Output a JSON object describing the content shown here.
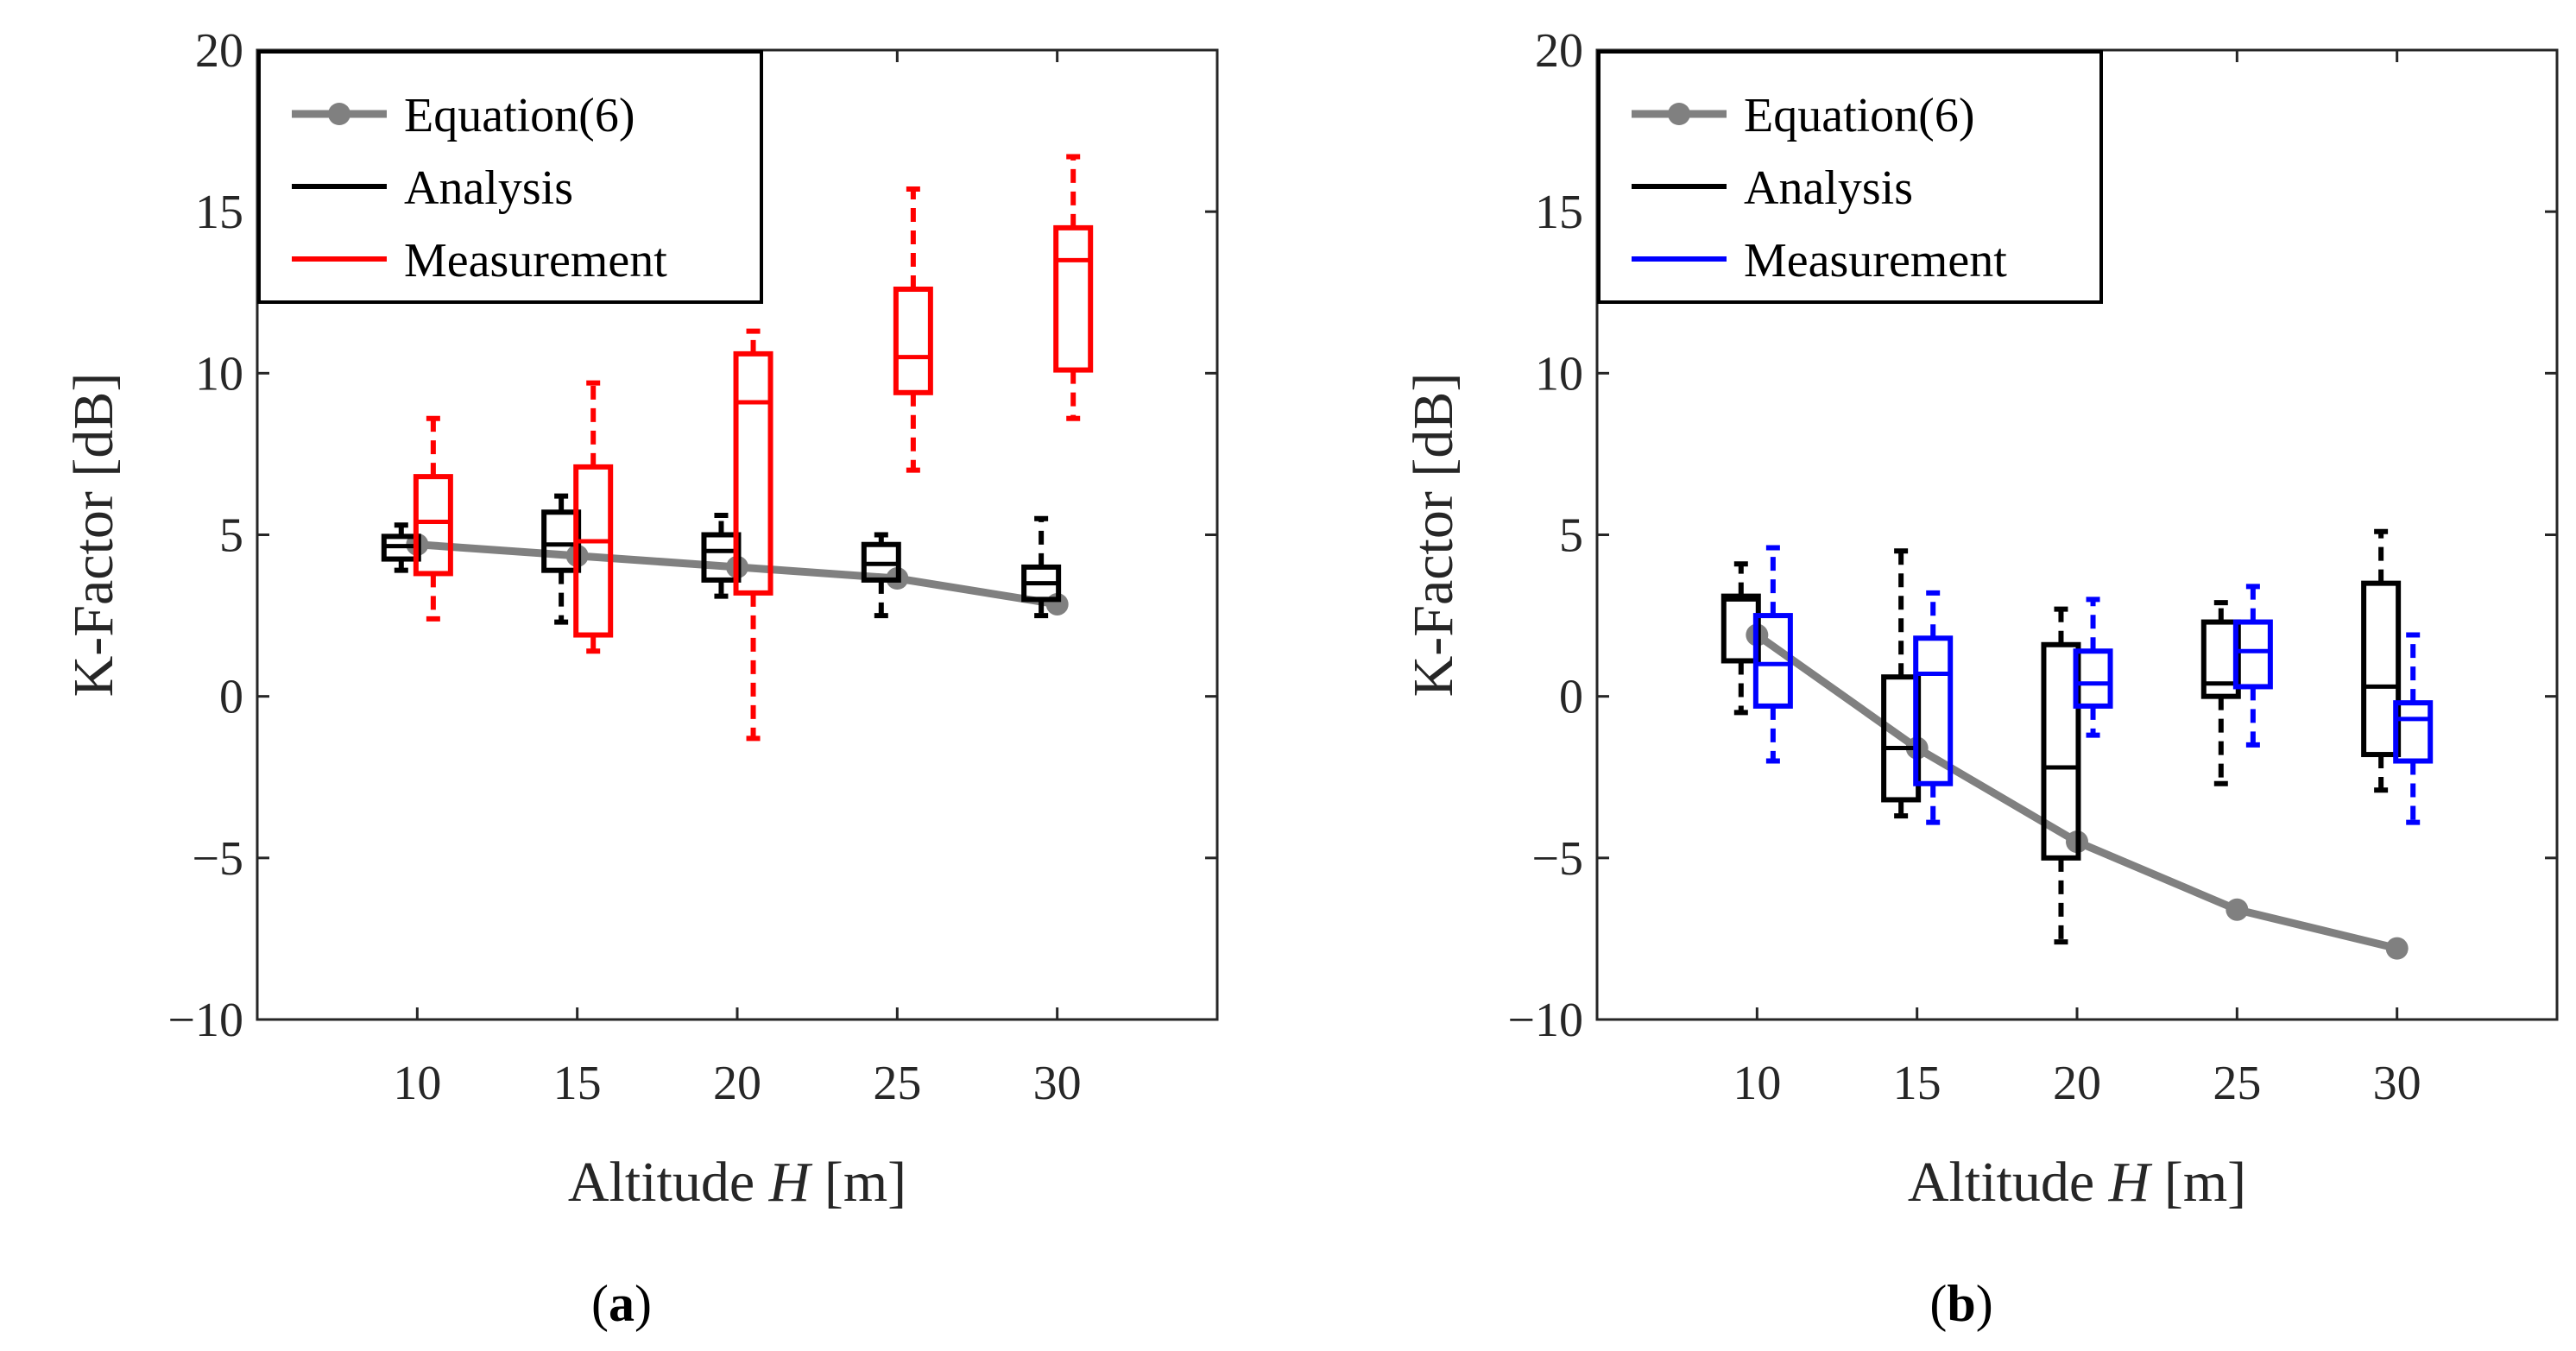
{
  "panels": [
    {
      "caption_open": "(",
      "caption_letter": "a",
      "caption_close": ")",
      "xlabel_prefix": "Altitude ",
      "xlabel_var": "H",
      "xlabel_unit": " [m]",
      "ylabel": "K-Factor [dB]",
      "legend": {
        "equation_label": "Equation(6)",
        "analysis_label": "Analysis",
        "measurement_label": "Measurement"
      }
    },
    {
      "caption_open": "(",
      "caption_letter": "b",
      "caption_close": ")",
      "xlabel_prefix": "Altitude ",
      "xlabel_var": "H",
      "xlabel_unit": " [m]",
      "ylabel": "K-Factor [dB]",
      "legend": {
        "equation_label": "Equation(6)",
        "analysis_label": "Analysis",
        "measurement_label": "Measurement"
      }
    }
  ],
  "chart_data": [
    {
      "type": "box",
      "x": [
        10,
        15,
        20,
        25,
        30
      ],
      "xlim": [
        5,
        35
      ],
      "ylim": [
        -10,
        20
      ],
      "xticks": [
        "10",
        "15",
        "20",
        "25",
        "30"
      ],
      "yticks": [
        "20",
        "15",
        "10",
        "5",
        "0",
        "−5",
        "−10"
      ],
      "ytick_values": [
        20,
        15,
        10,
        5,
        0,
        -5,
        -10
      ],
      "grid": false,
      "legend_position": "top-left",
      "colors": {
        "equation": "#808080",
        "analysis": "#000000",
        "measurement": "#ff0000"
      },
      "equation": {
        "name": "Equation(6)",
        "y": [
          4.7,
          4.35,
          4.0,
          3.65,
          2.85
        ]
      },
      "analysis": {
        "name": "Analysis",
        "boxes": [
          {
            "x": 10,
            "whisker_low": 3.9,
            "q1": 4.25,
            "median": 4.65,
            "q3": 4.95,
            "whisker_high": 5.3
          },
          {
            "x": 15,
            "whisker_low": 2.3,
            "q1": 3.9,
            "median": 4.7,
            "q3": 5.7,
            "whisker_high": 6.2
          },
          {
            "x": 20,
            "whisker_low": 3.1,
            "q1": 3.6,
            "median": 4.5,
            "q3": 5.0,
            "whisker_high": 5.6
          },
          {
            "x": 25,
            "whisker_low": 2.5,
            "q1": 3.6,
            "median": 4.1,
            "q3": 4.7,
            "whisker_high": 5.0
          },
          {
            "x": 30,
            "whisker_low": 2.5,
            "q1": 3.0,
            "median": 3.5,
            "q3": 4.0,
            "whisker_high": 5.5
          }
        ]
      },
      "measurement": {
        "name": "Measurement",
        "boxes": [
          {
            "x": 10,
            "whisker_low": 2.4,
            "q1": 3.8,
            "median": 5.4,
            "q3": 6.8,
            "whisker_high": 8.6
          },
          {
            "x": 15,
            "whisker_low": 1.4,
            "q1": 1.9,
            "median": 4.8,
            "q3": 7.1,
            "whisker_high": 9.7
          },
          {
            "x": 20,
            "whisker_low": -1.3,
            "q1": 3.2,
            "median": 9.1,
            "q3": 10.6,
            "whisker_high": 11.3
          },
          {
            "x": 25,
            "whisker_low": 7.0,
            "q1": 9.4,
            "median": 10.5,
            "q3": 12.6,
            "whisker_high": 15.7
          },
          {
            "x": 30,
            "whisker_low": 8.6,
            "q1": 10.1,
            "median": 13.5,
            "q3": 14.5,
            "whisker_high": 16.7
          }
        ]
      }
    },
    {
      "type": "box",
      "x": [
        10,
        15,
        20,
        25,
        30
      ],
      "xlim": [
        5,
        35
      ],
      "ylim": [
        -10,
        20
      ],
      "xticks": [
        "10",
        "15",
        "20",
        "25",
        "30"
      ],
      "yticks": [
        "20",
        "15",
        "10",
        "5",
        "0",
        "−5",
        "−10"
      ],
      "ytick_values": [
        20,
        15,
        10,
        5,
        0,
        -5,
        -10
      ],
      "grid": false,
      "legend_position": "top-left",
      "colors": {
        "equation": "#808080",
        "analysis": "#000000",
        "measurement": "#0000ff"
      },
      "equation": {
        "name": "Equation(6)",
        "y": [
          1.9,
          -1.6,
          -4.5,
          -6.6,
          -7.8
        ]
      },
      "analysis": {
        "name": "Analysis",
        "boxes": [
          {
            "x": 10,
            "whisker_low": -0.5,
            "q1": 1.1,
            "median": 3.0,
            "q3": 3.1,
            "whisker_high": 4.1
          },
          {
            "x": 15,
            "whisker_low": -3.7,
            "q1": -3.2,
            "median": -1.6,
            "q3": 0.6,
            "whisker_high": 4.5
          },
          {
            "x": 20,
            "whisker_low": -7.6,
            "q1": -5.0,
            "median": -2.2,
            "q3": 1.6,
            "whisker_high": 2.7
          },
          {
            "x": 25,
            "whisker_low": -2.7,
            "q1": 0.0,
            "median": 0.4,
            "q3": 2.3,
            "whisker_high": 2.9
          },
          {
            "x": 30,
            "whisker_low": -2.9,
            "q1": -1.8,
            "median": 0.3,
            "q3": 3.5,
            "whisker_high": 5.1
          }
        ]
      },
      "measurement": {
        "name": "Measurement",
        "boxes": [
          {
            "x": 10,
            "whisker_low": -2.0,
            "q1": -0.3,
            "median": 1.0,
            "q3": 2.5,
            "whisker_high": 4.6
          },
          {
            "x": 15,
            "whisker_low": -3.9,
            "q1": -2.7,
            "median": 0.7,
            "q3": 1.8,
            "whisker_high": 3.2
          },
          {
            "x": 20,
            "whisker_low": -1.2,
            "q1": -0.3,
            "median": 0.4,
            "q3": 1.4,
            "whisker_high": 3.0
          },
          {
            "x": 25,
            "whisker_low": -1.5,
            "q1": 0.3,
            "median": 1.4,
            "q3": 2.3,
            "whisker_high": 3.4
          },
          {
            "x": 30,
            "whisker_low": -3.9,
            "q1": -2.0,
            "median": -0.7,
            "q3": -0.2,
            "whisker_high": 1.9
          }
        ]
      }
    }
  ]
}
